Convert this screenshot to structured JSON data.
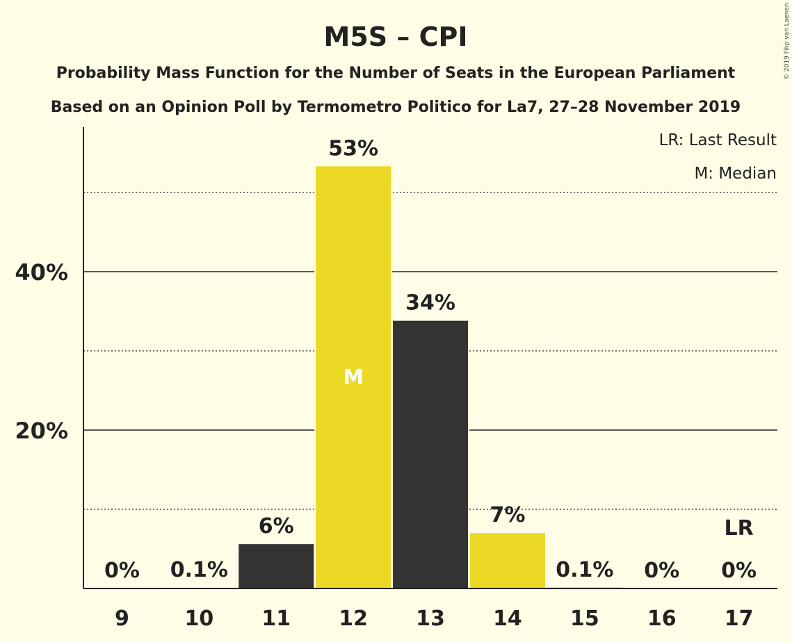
{
  "chart_data": {
    "type": "bar",
    "title": "M5S – CPI",
    "subtitle_lines": [
      "Probability Mass Function for the Number of Seats in the European Parliament",
      "Based on an Opinion Poll by Termometro Politico for La7, 27–28 November 2019"
    ],
    "legend": [
      "LR: Last Result",
      "M: Median"
    ],
    "legend_position": "top-right",
    "copyright": "© 2019 Filip van Laenen",
    "categories": [
      "9",
      "10",
      "11",
      "12",
      "13",
      "14",
      "15",
      "16",
      "17"
    ],
    "values": [
      0,
      0.1,
      5.6,
      53.3,
      33.8,
      7.0,
      0.1,
      0,
      0
    ],
    "data_labels": [
      "0%",
      "0.1%",
      "6%",
      "53%",
      "34%",
      "7%",
      "0.1%",
      "0%",
      "0%"
    ],
    "bar_colors": [
      "#333333",
      "#ecd926",
      "#333333",
      "#ecd926",
      "#333333",
      "#ecd926",
      "#333333",
      "#ecd926",
      "#333333"
    ],
    "median_category": "12",
    "median_label": "M",
    "last_result_category": "17",
    "last_result_label": "LR",
    "y_ticks": [
      20,
      40
    ],
    "y_tick_labels": [
      "20%",
      "40%"
    ],
    "y_minor_gridlines": [
      10,
      30,
      50
    ],
    "ylim": [
      0,
      58
    ],
    "grid": true,
    "xlabel": "",
    "ylabel": ""
  }
}
